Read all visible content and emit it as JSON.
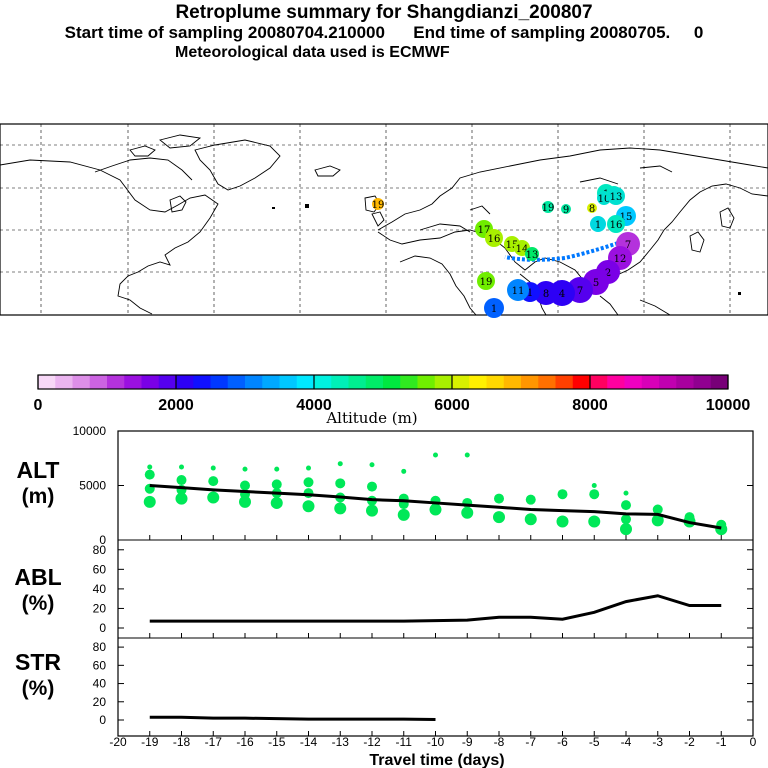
{
  "header": {
    "title_line1": "Retroplume summary for Shangdianzi_200807",
    "title_line2": "Start time of sampling 20080704.210000      End time of sampling 20080705.     0",
    "title_line3": "Meteorological data used is ECMWF"
  },
  "colorbar": {
    "colors": [
      "#f7d8f7",
      "#ebb5f0",
      "#dd8fe8",
      "#cc63e2",
      "#b432dc",
      "#9b10e0",
      "#7a00e6",
      "#5500ee",
      "#2d00f5",
      "#1010ff",
      "#0038ff",
      "#0060ff",
      "#0085ff",
      "#00a8ff",
      "#00c8ff",
      "#00e8ff",
      "#00f2e0",
      "#00f0b8",
      "#00ee90",
      "#00ec68",
      "#00e840",
      "#30ea20",
      "#70ee00",
      "#a8f000",
      "#d8f000",
      "#fff000",
      "#ffd800",
      "#ffb800",
      "#ff9600",
      "#ff7000",
      "#ff4000",
      "#ff0000",
      "#ff0060",
      "#ff00a0",
      "#f000c0",
      "#d800b8",
      "#c000b0",
      "#a8009f",
      "#900090",
      "#780078"
    ],
    "tick_labels": [
      "0",
      "2000",
      "4000",
      "6000",
      "8000",
      "10000"
    ],
    "label": "Altitude (m)"
  },
  "panels": {
    "alt": {
      "label_top": "ALT",
      "label_bottom": "(m)",
      "ticks": [
        "0",
        "5000",
        "10000"
      ]
    },
    "abl": {
      "label_top": "ABL",
      "label_bottom": "(%)",
      "ticks": [
        "0",
        "20",
        "40",
        "60",
        "80"
      ]
    },
    "str": {
      "label_top": "STR",
      "label_bottom": "(%)",
      "ticks": [
        "0",
        "20",
        "40",
        "60",
        "80"
      ]
    }
  },
  "xaxis": {
    "tick_labels": [
      "-20",
      "-19",
      "-18",
      "-17",
      "-16",
      "-15",
      "-14",
      "-13",
      "-12",
      "-11",
      "-10",
      "-9",
      "-8",
      "-7",
      "-6",
      "-5",
      "-4",
      "-3",
      "-2",
      "-1",
      "0"
    ],
    "label": "Travel time (days)"
  },
  "map": {
    "markers": [
      {
        "label": "1",
        "color": "#00e8c0"
      },
      {
        "label": "10",
        "color": "#00e0d0"
      },
      {
        "label": "1",
        "color": "#00e8c0"
      },
      {
        "label": "13",
        "color": "#00e0d0"
      },
      {
        "label": "15",
        "color": "#00c8ff"
      },
      {
        "label": "1",
        "color": "#00d8e0"
      },
      {
        "label": "16",
        "color": "#00e8c0"
      },
      {
        "label": "7",
        "color": "#b432dc"
      },
      {
        "label": "12",
        "color": "#9b10e0"
      },
      {
        "label": "2",
        "color": "#7a00e6"
      },
      {
        "label": "5",
        "color": "#7a00e6"
      },
      {
        "label": "7",
        "color": "#5500ee"
      },
      {
        "label": "4",
        "color": "#2d00f5"
      },
      {
        "label": "8",
        "color": "#2d00f5"
      },
      {
        "label": "1",
        "color": "#1010ff"
      },
      {
        "label": "11",
        "color": "#0085ff"
      },
      {
        "label": "1",
        "color": "#0060ff"
      },
      {
        "label": "19",
        "color": "#70ee00"
      },
      {
        "label": "17",
        "color": "#70ee00"
      },
      {
        "label": "16",
        "color": "#a8f000"
      },
      {
        "label": "15",
        "color": "#a8f000"
      },
      {
        "label": "14",
        "color": "#a8f000"
      },
      {
        "label": "13",
        "color": "#00e868"
      },
      {
        "label": "19",
        "color": "#00e8a0"
      },
      {
        "label": "9",
        "color": "#00e8a0"
      },
      {
        "label": "8",
        "color": "#d8f000"
      },
      {
        "label": "19",
        "color": "#ffb800"
      }
    ]
  },
  "chart_data": [
    {
      "type": "scatter",
      "title": "ALT (m)",
      "xlim": [
        -20,
        0
      ],
      "ylim": [
        0,
        10000
      ],
      "mean_line": {
        "x": [
          -19,
          -18,
          -17,
          -16,
          -15,
          -14,
          -13,
          -12,
          -11,
          -10,
          -9,
          -8,
          -7,
          -6,
          -5,
          -4,
          -3,
          -2,
          -1
        ],
        "y": [
          5000,
          4800,
          4600,
          4450,
          4300,
          4150,
          3950,
          3700,
          3600,
          3400,
          3200,
          3000,
          2800,
          2700,
          2600,
          2400,
          2350,
          1600,
          1100
        ]
      },
      "clusters": [
        {
          "x": -19,
          "y": [
            6700,
            6000,
            4700,
            3500
          ]
        },
        {
          "x": -18,
          "y": [
            6700,
            5500,
            4600,
            3800
          ]
        },
        {
          "x": -17,
          "y": [
            6600,
            5400,
            3900
          ]
        },
        {
          "x": -16,
          "y": [
            6500,
            5000,
            4200,
            3500
          ]
        },
        {
          "x": -15,
          "y": [
            6500,
            5100,
            4300,
            3400
          ]
        },
        {
          "x": -14,
          "y": [
            6600,
            5300,
            4300,
            3100
          ]
        },
        {
          "x": -13,
          "y": [
            7000,
            5200,
            3900,
            2900
          ]
        },
        {
          "x": -12,
          "y": [
            6900,
            4900,
            3600,
            2700
          ]
        },
        {
          "x": -11,
          "y": [
            6300,
            3800,
            3300,
            2300
          ]
        },
        {
          "x": -10,
          "y": [
            7800,
            3600,
            2800
          ]
        },
        {
          "x": -9,
          "y": [
            7800,
            3400,
            2500
          ]
        },
        {
          "x": -8,
          "y": [
            3800,
            2100
          ]
        },
        {
          "x": -7,
          "y": [
            3700,
            1900
          ]
        },
        {
          "x": -6,
          "y": [
            4200,
            1700
          ]
        },
        {
          "x": -5,
          "y": [
            5000,
            4200,
            1700
          ]
        },
        {
          "x": -4,
          "y": [
            4300,
            3200,
            1900,
            1000
          ]
        },
        {
          "x": -3,
          "y": [
            3000,
            2800,
            1800
          ]
        },
        {
          "x": -2,
          "y": [
            2100,
            1700
          ]
        },
        {
          "x": -1,
          "y": [
            1400,
            1000
          ]
        }
      ]
    },
    {
      "type": "line",
      "title": "ABL (%)",
      "xlim": [
        -20,
        0
      ],
      "ylim": [
        0,
        90
      ],
      "x": [
        -19,
        -18,
        -17,
        -16,
        -15,
        -14,
        -13,
        -12,
        -11,
        -10,
        -9,
        -8,
        -7,
        -6,
        -5,
        -4,
        -3,
        -2,
        -1
      ],
      "y": [
        7,
        7,
        7,
        7,
        7,
        7,
        7,
        7,
        7,
        7.5,
        8,
        11,
        11,
        9,
        16,
        27,
        33,
        23,
        23
      ]
    },
    {
      "type": "line",
      "title": "STR (%)",
      "xlim": [
        -20,
        0
      ],
      "ylim": [
        0,
        90
      ],
      "x": [
        -19,
        -18,
        -17,
        -16,
        -15,
        -14,
        -13,
        -12,
        -11,
        -10
      ],
      "y": [
        3,
        3,
        2,
        2,
        1.5,
        1,
        1,
        1,
        1,
        0.5
      ]
    }
  ]
}
